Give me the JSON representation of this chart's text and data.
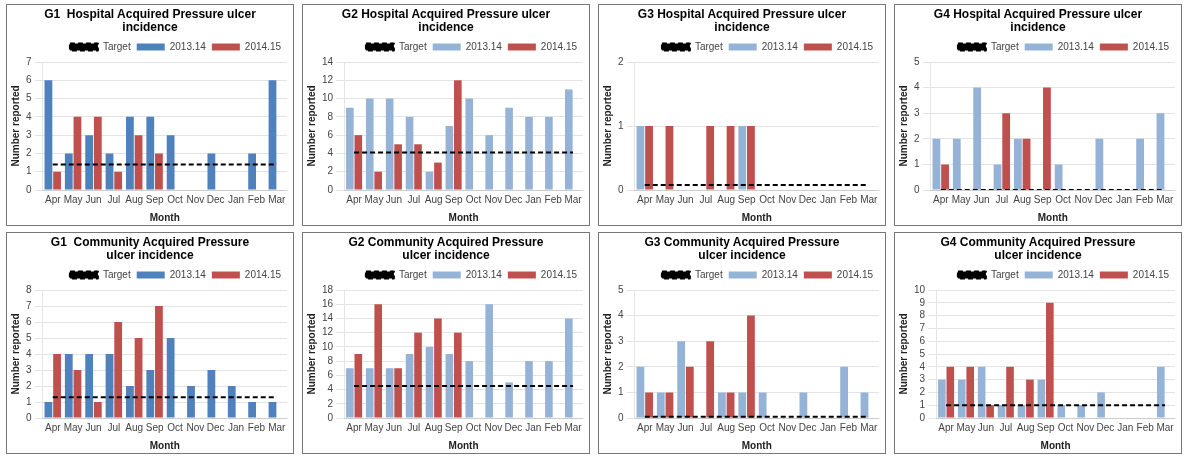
{
  "chart_data": [
    {
      "type": "bar",
      "title": "G1  Hospital Acquired Pressure ulcer incidence",
      "xlabel": "Month",
      "ylabel": "Number reported",
      "categories": [
        "Apr",
        "May",
        "Jun",
        "Jul",
        "Aug",
        "Sep",
        "Oct",
        "Nov",
        "Dec",
        "Jan",
        "Feb",
        "Mar"
      ],
      "series": [
        {
          "name": "2013.14",
          "color": "#4f81bd",
          "values": [
            6,
            2,
            3,
            2,
            4,
            4,
            3,
            0,
            2,
            0,
            2,
            6
          ]
        },
        {
          "name": "2014.15",
          "color": "#c0504d",
          "values": [
            1,
            4,
            4,
            1,
            3,
            2,
            null,
            null,
            null,
            null,
            null,
            null
          ]
        },
        {
          "name": "Target",
          "type": "line",
          "color": "#000000",
          "line_style": "dashed",
          "values": [
            1.4,
            1.4,
            1.4,
            1.4,
            1.4,
            1.4,
            1.4,
            1.4,
            1.4,
            1.4,
            1.4,
            1.4
          ]
        }
      ],
      "ylim": [
        0,
        7
      ],
      "yticks": [
        0,
        1,
        2,
        3,
        4,
        5,
        6,
        7
      ],
      "grid": "y",
      "legend": "top",
      "marker": "none"
    },
    {
      "type": "bar",
      "title": "G2 Hospital Acquired Pressure ulcer incidence",
      "xlabel": "Month",
      "ylabel": "Number reported",
      "categories": [
        "Apr",
        "May",
        "Jun",
        "Jul",
        "Aug",
        "Sep",
        "Oct",
        "Nov",
        "Dec",
        "Jan",
        "Feb",
        "Mar"
      ],
      "series": [
        {
          "name": "2013.14",
          "color": "#95b3d7",
          "values": [
            9,
            10,
            10,
            8,
            2,
            7,
            10,
            6,
            9,
            8,
            8,
            11
          ]
        },
        {
          "name": "2014.15",
          "color": "#c0504d",
          "values": [
            6,
            2,
            5,
            5,
            3,
            12,
            null,
            null,
            null,
            null,
            null,
            null
          ]
        },
        {
          "name": "Target",
          "type": "line",
          "color": "#000000",
          "line_style": "dashed",
          "values": [
            4.1,
            4.1,
            4.1,
            4.1,
            4.1,
            4.1,
            4.1,
            4.1,
            4.1,
            4.1,
            4.1,
            4.1
          ]
        }
      ],
      "ylim": [
        0,
        14
      ],
      "yticks": [
        0,
        2,
        4,
        6,
        8,
        10,
        12,
        14
      ],
      "grid": "y",
      "legend": "top",
      "marker": "none"
    },
    {
      "type": "bar",
      "title": "G3 Hospital Acquired Pressure ulcer incidence",
      "xlabel": "Month",
      "ylabel": "Number reported",
      "categories": [
        "Apr",
        "May",
        "Jun",
        "Jul",
        "Aug",
        "Sep",
        "Oct",
        "Nov",
        "Dec",
        "Jan",
        "Feb",
        "Mar"
      ],
      "series": [
        {
          "name": "2013.14",
          "color": "#95b3d7",
          "values": [
            1,
            0,
            0,
            0,
            0,
            1,
            0,
            0,
            0,
            0,
            0,
            0
          ]
        },
        {
          "name": "2014.15",
          "color": "#c0504d",
          "values": [
            1,
            1,
            0,
            1,
            1,
            1,
            null,
            null,
            null,
            null,
            null,
            null
          ]
        },
        {
          "name": "Target",
          "type": "line",
          "color": "#000000",
          "line_style": "dashed",
          "values": [
            0.08,
            0.08,
            0.08,
            0.08,
            0.08,
            0.08,
            0.08,
            0.08,
            0.08,
            0.08,
            0.08,
            0.08
          ]
        }
      ],
      "ylim": [
        0,
        2
      ],
      "yticks": [
        0,
        1,
        2
      ],
      "grid": "y",
      "legend": "top",
      "marker": "none"
    },
    {
      "type": "bar",
      "title": "G4 Hospital Acquired Pressure ulcer incidence",
      "xlabel": "Month",
      "ylabel": "Number reported",
      "categories": [
        "Apr",
        "May",
        "Jun",
        "Jul",
        "Aug",
        "Sep",
        "Oct",
        "Nov",
        "Dec",
        "Jan",
        "Feb",
        "Mar"
      ],
      "series": [
        {
          "name": "2013.14",
          "color": "#95b3d7",
          "values": [
            2,
            2,
            4,
            1,
            2,
            0,
            1,
            0,
            2,
            0,
            2,
            3
          ]
        },
        {
          "name": "2014.15",
          "color": "#c0504d",
          "values": [
            1,
            0,
            0,
            3,
            2,
            4,
            null,
            null,
            null,
            null,
            null,
            null
          ]
        },
        {
          "name": "Target",
          "type": "line",
          "color": "#000000",
          "line_style": "dashed",
          "values": [
            0,
            0,
            0,
            0,
            0,
            0,
            0,
            0,
            0,
            0,
            0,
            0
          ]
        }
      ],
      "ylim": [
        0,
        5
      ],
      "yticks": [
        0,
        1,
        2,
        3,
        4,
        5
      ],
      "grid": "y",
      "legend": "top",
      "marker": "none"
    },
    {
      "type": "bar",
      "title": "G1  Community Acquired Pressure ulcer incidence",
      "xlabel": "Month",
      "ylabel": "Number reported",
      "categories": [
        "Apr",
        "May",
        "Jun",
        "Jul",
        "Aug",
        "Sep",
        "Oct",
        "Nov",
        "Dec",
        "Jan",
        "Feb",
        "Mar"
      ],
      "series": [
        {
          "name": "2013.14",
          "color": "#4f81bd",
          "values": [
            1,
            4,
            4,
            4,
            2,
            3,
            5,
            2,
            3,
            2,
            1,
            1
          ]
        },
        {
          "name": "2014.15",
          "color": "#c0504d",
          "values": [
            4,
            3,
            1,
            6,
            5,
            7,
            null,
            null,
            null,
            null,
            null,
            null
          ]
        },
        {
          "name": "Target",
          "type": "line",
          "color": "#000000",
          "line_style": "dashed",
          "values": [
            1.3,
            1.3,
            1.3,
            1.3,
            1.3,
            1.3,
            1.3,
            1.3,
            1.3,
            1.3,
            1.3,
            1.3
          ]
        }
      ],
      "ylim": [
        0,
        8
      ],
      "yticks": [
        0,
        1,
        2,
        3,
        4,
        5,
        6,
        7,
        8
      ],
      "grid": "y",
      "legend": "top",
      "marker": "none"
    },
    {
      "type": "bar",
      "title": "G2 Community Acquired Pressure ulcer incidence",
      "xlabel": "Month",
      "ylabel": "Number reported",
      "categories": [
        "Apr",
        "May",
        "Jun",
        "Jul",
        "Aug",
        "Sep",
        "Oct",
        "Nov",
        "Dec",
        "Jan",
        "Feb",
        "Mar"
      ],
      "series": [
        {
          "name": "2013.14",
          "color": "#95b3d7",
          "values": [
            7,
            7,
            7,
            9,
            10,
            9,
            8,
            16,
            5,
            8,
            8,
            14
          ]
        },
        {
          "name": "2014.15",
          "color": "#c0504d",
          "values": [
            9,
            16,
            7,
            12,
            14,
            12,
            null,
            null,
            null,
            null,
            null,
            null
          ]
        },
        {
          "name": "Target",
          "type": "line",
          "color": "#000000",
          "line_style": "dashed",
          "values": [
            4.5,
            4.5,
            4.5,
            4.5,
            4.5,
            4.5,
            4.5,
            4.5,
            4.5,
            4.5,
            4.5,
            4.5
          ]
        }
      ],
      "ylim": [
        0,
        18
      ],
      "yticks": [
        0,
        2,
        4,
        6,
        8,
        10,
        12,
        14,
        16,
        18
      ],
      "grid": "y",
      "legend": "top",
      "marker": "none"
    },
    {
      "type": "bar",
      "title": "G3 Community Acquired Pressure ulcer incidence",
      "xlabel": "Month",
      "ylabel": "Number reported",
      "categories": [
        "Apr",
        "May",
        "Jun",
        "Jul",
        "Aug",
        "Sep",
        "Oct",
        "Nov",
        "Dec",
        "Jan",
        "Feb",
        "Mar"
      ],
      "series": [
        {
          "name": "2013.14",
          "color": "#95b3d7",
          "values": [
            2,
            1,
            3,
            0,
            1,
            1,
            1,
            0,
            1,
            0,
            2,
            1
          ]
        },
        {
          "name": "2014.15",
          "color": "#c0504d",
          "values": [
            1,
            1,
            2,
            3,
            1,
            4,
            null,
            null,
            null,
            null,
            null,
            null
          ]
        },
        {
          "name": "Target",
          "type": "line",
          "color": "#000000",
          "line_style": "dashed",
          "values": [
            0.05,
            0.05,
            0.05,
            0.05,
            0.05,
            0.05,
            0.05,
            0.05,
            0.05,
            0.05,
            0.05,
            0.05
          ]
        }
      ],
      "ylim": [
        0,
        5
      ],
      "yticks": [
        0,
        1,
        2,
        3,
        4,
        5
      ],
      "grid": "y",
      "legend": "top",
      "marker": "none"
    },
    {
      "type": "bar",
      "title": "G4 Community Acquired Pressure ulcer incidence",
      "xlabel": "Month",
      "ylabel": "Number reported",
      "categories": [
        "Apr",
        "May",
        "Jun",
        "Jul",
        "Aug",
        "Sep",
        "Oct",
        "Nov",
        "Dec",
        "Jan",
        "Feb",
        "Mar"
      ],
      "series": [
        {
          "name": "2013.14",
          "color": "#95b3d7",
          "values": [
            3,
            3,
            4,
            1,
            1,
            3,
            1,
            1,
            2,
            0,
            0,
            4
          ]
        },
        {
          "name": "2014.15",
          "color": "#c0504d",
          "values": [
            4,
            4,
            1,
            4,
            3,
            9,
            null,
            null,
            null,
            null,
            null,
            null
          ]
        },
        {
          "name": "Target",
          "type": "line",
          "color": "#000000",
          "line_style": "dashed",
          "values": [
            1,
            1,
            1,
            1,
            1,
            1,
            1,
            1,
            1,
            1,
            1,
            1
          ]
        }
      ],
      "ylim": [
        0,
        10
      ],
      "yticks": [
        0,
        1,
        2,
        3,
        4,
        5,
        6,
        7,
        8,
        9,
        10
      ],
      "grid": "y",
      "legend": "top",
      "marker": "none"
    }
  ]
}
